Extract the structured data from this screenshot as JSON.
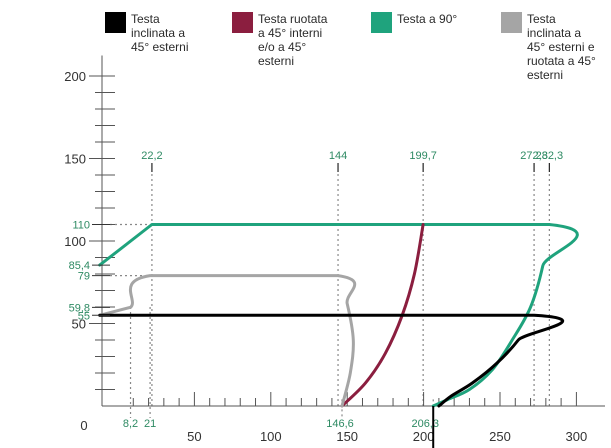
{
  "legend": [
    {
      "key": "black",
      "label": "Testa\ninclinata a\n45° esterni",
      "color": "#000000"
    },
    {
      "key": "red",
      "label": "Testa ruotata\na 45° interni\ne/o a 45°\nesterni",
      "color": "#8b1e3f"
    },
    {
      "key": "green",
      "label": "Testa a 90°",
      "color": "#1fa37d"
    },
    {
      "key": "gray",
      "label": "Testa\ninclinata a\n45° esterni e\nruotata a 45°\nesterni",
      "color": "#a5a5a5"
    }
  ],
  "colors": {
    "axis": "#555555",
    "text": "#333333",
    "marker": "#2e8a63",
    "dots": "#888888"
  },
  "chart_data": {
    "type": "line",
    "origin_label": "0",
    "x_axis": {
      "range": [
        -12,
        305
      ],
      "major_ticks": [
        50,
        100,
        150,
        200,
        250,
        300
      ],
      "major_labels": [
        "50",
        "100",
        "150",
        "200",
        "250",
        "300"
      ]
    },
    "y_axis": {
      "range": [
        0,
        210
      ],
      "major_ticks": [
        50,
        100,
        150,
        200
      ],
      "major_labels": [
        "50",
        "100",
        "150",
        "200"
      ]
    },
    "x_markers": [
      {
        "x": 8.2,
        "label": "8,2",
        "place": "bottom"
      },
      {
        "x": 21,
        "label": "21",
        "place": "bottom"
      },
      {
        "x": 146.6,
        "label": "146,6",
        "place": "bottom"
      },
      {
        "x": 206.3,
        "label": "206,3",
        "place": "bottom"
      },
      {
        "x": 22.2,
        "label": "22,2",
        "place": "top"
      },
      {
        "x": 144,
        "label": "144",
        "place": "top"
      },
      {
        "x": 199.7,
        "label": "199,7",
        "place": "top"
      },
      {
        "x": 272.3,
        "label": "272,3",
        "place": "top"
      },
      {
        "x": 282.3,
        "label": "282,3",
        "place": "top"
      }
    ],
    "y_markers": [
      {
        "y": 110,
        "label": "110"
      },
      {
        "y": 85.4,
        "label": "85,4"
      },
      {
        "y": 79,
        "label": "79"
      },
      {
        "y": 59.8,
        "label": "59,8"
      },
      {
        "y": 55,
        "label": "55"
      }
    ],
    "series": [
      {
        "key": "green",
        "color": "#1fa37d",
        "points": [
          [
            -12,
            85.4
          ],
          [
            22.2,
            110
          ],
          [
            282.3,
            110
          ],
          [
            278,
            85
          ],
          [
            270,
            60
          ],
          [
            258,
            40
          ],
          [
            245,
            22
          ],
          [
            230,
            10
          ],
          [
            216,
            4
          ],
          [
            206.3,
            0
          ]
        ]
      },
      {
        "key": "red",
        "color": "#8b1e3f",
        "points": [
          [
            199.7,
            110
          ],
          [
            194,
            80
          ],
          [
            186,
            55
          ],
          [
            175,
            32
          ],
          [
            162,
            14
          ],
          [
            146.6,
            0
          ]
        ]
      },
      {
        "key": "gray",
        "color": "#a5a5a5",
        "points": [
          [
            -12,
            55
          ],
          [
            8.2,
            59.8
          ],
          [
            21,
            79
          ],
          [
            144,
            79
          ],
          [
            150,
            62
          ],
          [
            154,
            40
          ],
          [
            152,
            20
          ],
          [
            146.6,
            0
          ]
        ]
      },
      {
        "key": "black",
        "color": "#000000",
        "points": [
          [
            -12,
            55
          ],
          [
            272.3,
            55
          ],
          [
            262,
            40
          ],
          [
            248,
            26
          ],
          [
            232,
            14
          ],
          [
            218,
            6
          ],
          [
            210,
            0
          ]
        ]
      }
    ]
  }
}
